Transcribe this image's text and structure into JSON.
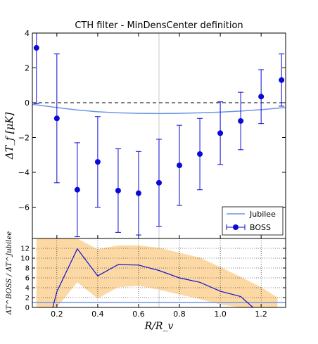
{
  "chart_data": [
    {
      "type": "scatter",
      "title": "CTH filter - MinDensCenter definition",
      "ylabel": "ΔT_f [μK]",
      "xlim": [
        0.08,
        1.32
      ],
      "ylim": [
        -7.8,
        4
      ],
      "yticks": [
        "4",
        "2",
        "0",
        "−2",
        "−4",
        "−6"
      ],
      "ytick_values": [
        4,
        2,
        0,
        -2,
        -4,
        -6
      ],
      "reference_line_y": 0,
      "vertical_line_x": 0.7,
      "legend": {
        "placement": "lower-right",
        "entries": [
          "Jubilee",
          "BOSS"
        ]
      },
      "series": [
        {
          "name": "Jubilee",
          "style": "line",
          "color": "#6f95e8",
          "x": [
            0.08,
            0.1,
            0.2,
            0.3,
            0.4,
            0.5,
            0.6,
            0.7,
            0.8,
            0.9,
            1.0,
            1.1,
            1.2,
            1.32
          ],
          "y": [
            -0.1,
            -0.12,
            -0.28,
            -0.42,
            -0.52,
            -0.58,
            -0.61,
            -0.62,
            -0.61,
            -0.58,
            -0.54,
            -0.48,
            -0.4,
            -0.28
          ]
        },
        {
          "name": "BOSS",
          "style": "errorbar",
          "color": "#0a0ad8",
          "x": [
            0.1,
            0.2,
            0.3,
            0.4,
            0.5,
            0.6,
            0.7,
            0.8,
            0.9,
            1.0,
            1.1,
            1.2,
            1.3
          ],
          "y": [
            3.15,
            -0.9,
            -5.0,
            -3.4,
            -5.05,
            -5.2,
            -4.6,
            -3.6,
            -2.95,
            -1.75,
            -1.05,
            0.35,
            1.3
          ],
          "err": [
            3.2,
            3.7,
            2.7,
            2.6,
            2.4,
            2.4,
            2.5,
            2.3,
            2.05,
            1.8,
            1.65,
            1.55,
            1.5
          ]
        }
      ]
    },
    {
      "type": "line",
      "xlabel": "R/R_v",
      "ylabel": "ΔT^BOSS / ΔT^Jubilee",
      "xlim": [
        0.08,
        1.32
      ],
      "ylim": [
        0,
        14
      ],
      "xticks": [
        "0.2",
        "0.4",
        "0.6",
        "0.8",
        "1.0",
        "1.2"
      ],
      "xtick_values": [
        0.2,
        0.4,
        0.6,
        0.8,
        1.0,
        1.2
      ],
      "yticks": [
        "0",
        "2",
        "4",
        "6",
        "8",
        "10",
        "12"
      ],
      "ytick_values": [
        0,
        2,
        4,
        6,
        8,
        10,
        12
      ],
      "grid": true,
      "reference_line_y": 1,
      "vertical_line_x": 0.7,
      "series": [
        {
          "name": "ratio",
          "color": "#1010d0",
          "x": [
            0.18,
            0.2,
            0.3,
            0.4,
            0.5,
            0.6,
            0.7,
            0.8,
            0.9,
            1.0,
            1.1,
            1.16
          ],
          "y": [
            0,
            3.2,
            11.9,
            6.4,
            8.7,
            8.6,
            7.5,
            6.0,
            5.1,
            3.3,
            2.2,
            0
          ]
        },
        {
          "name": "band",
          "style": "fill",
          "color": "#fcd9a4",
          "x": [
            0.1,
            0.15,
            0.2,
            0.3,
            0.4,
            0.5,
            0.6,
            0.7,
            0.8,
            0.9,
            1.0,
            1.1,
            1.2,
            1.28
          ],
          "upper": [
            14,
            14,
            14,
            14,
            11.8,
            12.6,
            12.6,
            12.1,
            11.1,
            10.1,
            8.2,
            6.2,
            4.1,
            2.0
          ],
          "lower": [
            0,
            0,
            0,
            5.1,
            1.8,
            4.1,
            4.4,
            3.6,
            2.6,
            1.7,
            0.6,
            0,
            0,
            0
          ]
        }
      ]
    }
  ]
}
